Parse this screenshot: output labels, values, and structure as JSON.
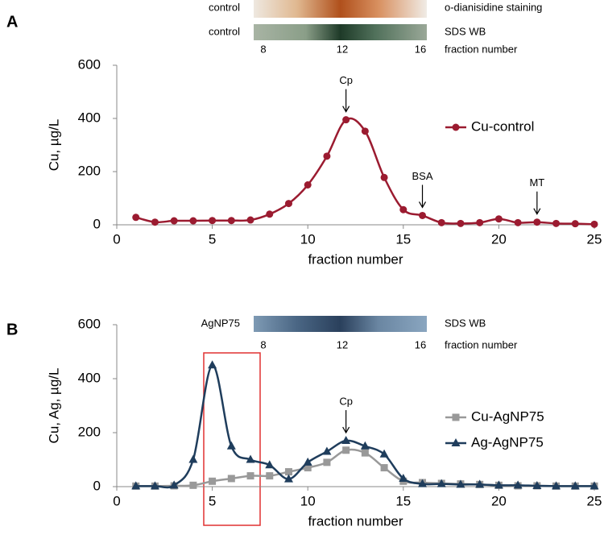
{
  "chart_data": [
    {
      "type": "line",
      "panel_label": "A",
      "inset": {
        "rows": [
          {
            "left": "control",
            "right": "o-dianisidine staining"
          },
          {
            "left": "control",
            "right": "SDS WB"
          }
        ],
        "lane_labels": [
          "8",
          "12",
          "16"
        ],
        "lane_caption": "fraction number"
      },
      "x_label": "fraction number",
      "y_label": "Cu, µg/L",
      "x": [
        1,
        2,
        3,
        4,
        5,
        6,
        7,
        8,
        9,
        10,
        11,
        12,
        13,
        14,
        15,
        16,
        17,
        18,
        19,
        20,
        21,
        22,
        23,
        24,
        25
      ],
      "series": [
        {
          "name": "Cu-control",
          "color": "#9b1b30",
          "marker": "circle",
          "values": [
            28,
            10,
            15,
            15,
            16,
            16,
            18,
            40,
            80,
            150,
            258,
            395,
            352,
            178,
            57,
            35,
            8,
            5,
            8,
            22,
            8,
            10,
            5,
            4,
            2
          ]
        }
      ],
      "annotations": [
        {
          "text": "Cp",
          "x": 12
        },
        {
          "text": "BSA",
          "x": 16
        },
        {
          "text": "MT",
          "x": 22
        }
      ],
      "xlim": [
        0,
        25
      ],
      "xticks": [
        0,
        5,
        10,
        15,
        20,
        25
      ],
      "ylim": [
        0,
        600
      ],
      "yticks": [
        0,
        200,
        400,
        600
      ],
      "legend": "right"
    },
    {
      "type": "line",
      "panel_label": "B",
      "inset": {
        "rows": [
          {
            "left": "AgNP75",
            "right": "SDS WB"
          }
        ],
        "lane_labels": [
          "8",
          "12",
          "16"
        ],
        "lane_caption": "fraction number"
      },
      "x_label": "fraction number",
      "y_label": "Cu, Ag, µg/L",
      "x": [
        1,
        2,
        3,
        4,
        5,
        6,
        7,
        8,
        9,
        10,
        11,
        12,
        13,
        14,
        15,
        16,
        17,
        18,
        19,
        20,
        21,
        22,
        23,
        24,
        25
      ],
      "series": [
        {
          "name": "Cu-AgNP75",
          "color": "#999999",
          "marker": "square",
          "values": [
            2,
            2,
            3,
            5,
            20,
            30,
            40,
            40,
            55,
            70,
            90,
            135,
            125,
            70,
            20,
            15,
            12,
            10,
            8,
            5,
            3,
            3,
            2,
            2,
            2
          ]
        },
        {
          "name": "Ag-AgNP75",
          "color": "#1f3d5c",
          "marker": "triangle",
          "values": [
            2,
            2,
            5,
            100,
            450,
            150,
            100,
            80,
            28,
            90,
            130,
            170,
            150,
            120,
            30,
            10,
            10,
            8,
            8,
            5,
            5,
            3,
            2,
            2,
            2
          ]
        }
      ],
      "annotations": [
        {
          "text": "Cp",
          "x": 12
        }
      ],
      "xlim": [
        0,
        25
      ],
      "xticks": [
        0,
        5,
        10,
        15,
        20,
        25
      ],
      "ylim": [
        0,
        600
      ],
      "yticks": [
        0,
        200,
        400,
        600
      ],
      "legend": "right"
    }
  ]
}
